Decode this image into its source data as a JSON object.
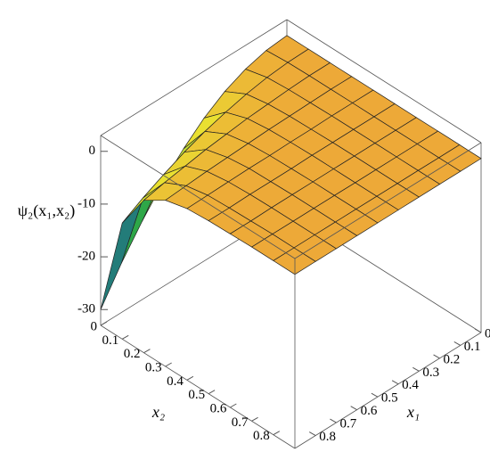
{
  "chart_data": {
    "type": "surface",
    "zlabel": "ψ₂(x₁,x₂)",
    "x1label": "x₁",
    "x2label": "x₂",
    "x1": [
      0,
      0.1,
      0.2,
      0.3,
      0.4,
      0.5,
      0.6,
      0.7,
      0.8,
      0.9
    ],
    "x2": [
      0,
      0.1,
      0.2,
      0.3,
      0.4,
      0.5,
      0.6,
      0.7,
      0.8,
      0.9
    ],
    "z": [
      [
        0,
        0,
        0,
        0,
        0,
        0,
        0,
        0,
        0,
        0
      ],
      [
        -0.4,
        -0.1,
        0,
        0,
        0,
        0,
        0,
        0,
        0,
        0
      ],
      [
        -1.5,
        -0.5,
        -0.2,
        -0.1,
        0,
        0,
        0,
        0,
        0,
        0
      ],
      [
        -3.3,
        -1.2,
        -0.5,
        -0.2,
        -0.1,
        0,
        0,
        0,
        0,
        0
      ],
      [
        -5.9,
        -2.2,
        -0.8,
        -0.3,
        -0.1,
        0,
        0,
        0,
        0,
        0
      ],
      [
        -9.3,
        -3.4,
        -1.3,
        -0.5,
        -0.2,
        -0.1,
        0,
        0,
        0,
        0
      ],
      [
        -13.3,
        -4.9,
        -1.8,
        -0.7,
        -0.2,
        -0.1,
        0,
        0,
        0,
        0
      ],
      [
        -18.2,
        -6.7,
        -2.5,
        -0.9,
        -0.3,
        -0.1,
        0,
        0,
        0,
        0
      ],
      [
        -23.7,
        -8.7,
        -3.2,
        -1.2,
        -0.4,
        -0.2,
        -0.1,
        0,
        0,
        0
      ],
      [
        -30,
        -11,
        -4.1,
        -1.5,
        -0.5,
        -0.2,
        -0.1,
        0,
        0,
        0
      ]
    ],
    "x1lim": [
      0,
      0.9
    ],
    "x2lim": [
      0,
      0.9
    ],
    "zlim": [
      -33,
      3
    ],
    "x1ticks": [
      0,
      0.1,
      0.2,
      0.3,
      0.4,
      0.5,
      0.6,
      0.7,
      0.8
    ],
    "x2ticks": [
      0,
      0.1,
      0.2,
      0.3,
      0.4,
      0.5,
      0.6,
      0.7,
      0.8
    ],
    "zticks": [
      0,
      -10,
      -20,
      -30
    ],
    "colormap": [
      "#7a1fa2",
      "#2a3cc8",
      "#1fa24a",
      "#e8e830",
      "#f08a3c"
    ]
  }
}
